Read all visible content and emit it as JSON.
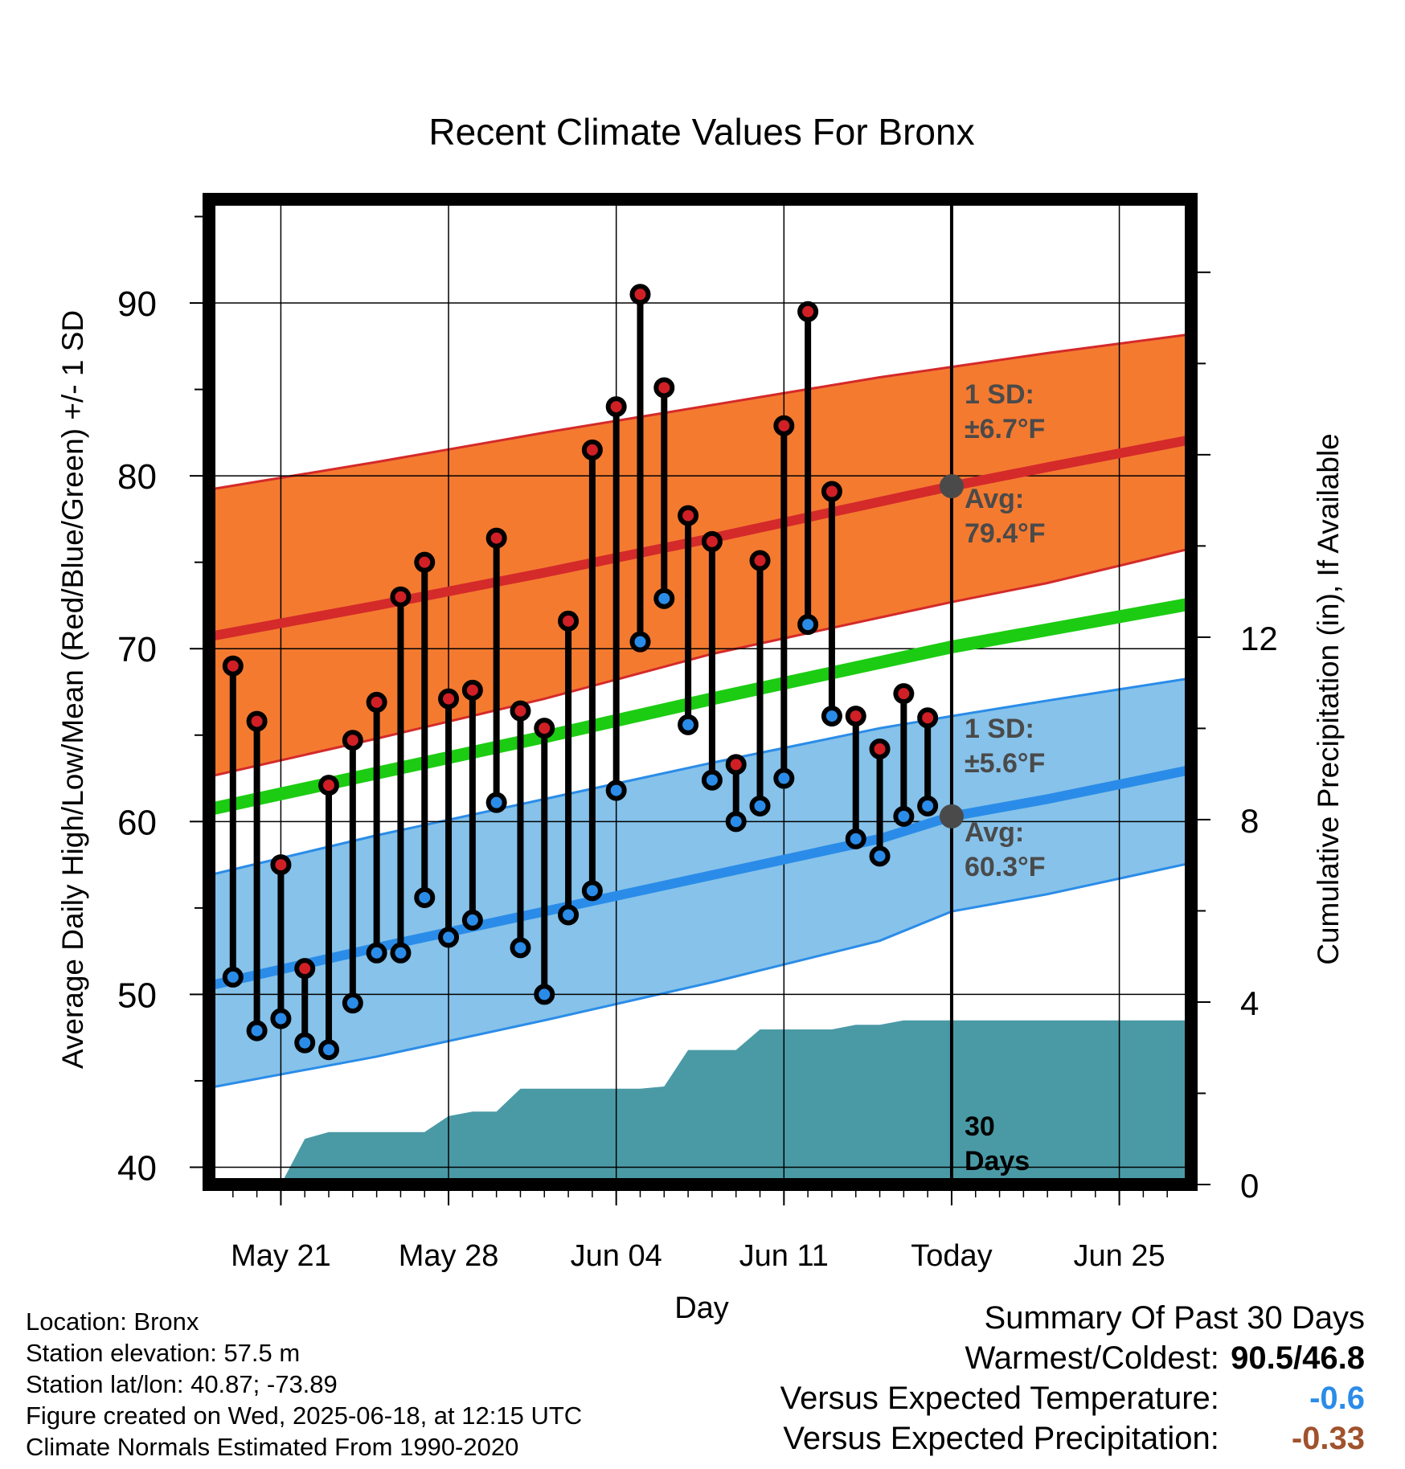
{
  "chart_data": {
    "type": "line",
    "title": "Recent Climate Values For Bronx",
    "xlabel": "Day",
    "ylabel": "Average Daily High/Low/Mean (Red/Blue/Green) +/- 1 SD",
    "y2label": "Cumulative Precipitation (in), If Available",
    "ylim": [
      39,
      96
    ],
    "y2lim": [
      0,
      21.6
    ],
    "xlim": [
      "2025-05-18",
      "2025-06-28"
    ],
    "yticks": [
      40,
      50,
      60,
      70,
      80,
      90
    ],
    "y2ticks": [
      0,
      4,
      8,
      12
    ],
    "xticks": [
      {
        "date": "2025-05-21",
        "label": "May 21"
      },
      {
        "date": "2025-05-28",
        "label": "May 28"
      },
      {
        "date": "2025-06-04",
        "label": "Jun 04"
      },
      {
        "date": "2025-06-11",
        "label": "Jun 11"
      },
      {
        "date": "2025-06-18",
        "label": "Today"
      },
      {
        "date": "2025-06-25",
        "label": "Jun 25"
      }
    ],
    "grid": true,
    "today": "2025-06-18",
    "normals": {
      "dates": [
        "2025-05-18",
        "2025-05-25",
        "2025-06-01",
        "2025-06-08",
        "2025-06-15",
        "2025-06-18",
        "2025-06-22",
        "2025-06-28"
      ],
      "high_mean": [
        70.7,
        72.5,
        74.4,
        76.4,
        78.5,
        79.4,
        80.5,
        82.1
      ],
      "high_upper": [
        79.2,
        80.8,
        82.5,
        84.1,
        85.7,
        86.3,
        87.1,
        88.2
      ],
      "high_lower": [
        62.6,
        64.8,
        67.1,
        69.7,
        71.8,
        72.7,
        73.8,
        75.8
      ],
      "mean_line": [
        60.7,
        62.8,
        64.9,
        67.1,
        69.2,
        70.1,
        71.1,
        72.6
      ],
      "low_mean": [
        50.5,
        52.7,
        54.8,
        56.9,
        59.0,
        60.3,
        61.3,
        63.0
      ],
      "low_upper": [
        56.9,
        59.2,
        61.3,
        63.4,
        65.4,
        66.1,
        67.0,
        68.3
      ],
      "low_lower": [
        44.6,
        46.4,
        48.5,
        50.7,
        53.1,
        54.8,
        55.8,
        57.6
      ]
    },
    "series": [
      {
        "name": "High",
        "color": "#d11f26",
        "dates": [
          "2025-05-19",
          "2025-05-20",
          "2025-05-21",
          "2025-05-22",
          "2025-05-23",
          "2025-05-24",
          "2025-05-25",
          "2025-05-26",
          "2025-05-27",
          "2025-05-28",
          "2025-05-29",
          "2025-05-30",
          "2025-05-31",
          "2025-06-01",
          "2025-06-02",
          "2025-06-03",
          "2025-06-04",
          "2025-06-05",
          "2025-06-06",
          "2025-06-07",
          "2025-06-08",
          "2025-06-09",
          "2025-06-10",
          "2025-06-11",
          "2025-06-12",
          "2025-06-13",
          "2025-06-14",
          "2025-06-15",
          "2025-06-16",
          "2025-06-17"
        ],
        "values": [
          69.0,
          65.8,
          57.5,
          51.5,
          62.1,
          64.7,
          66.9,
          73.0,
          75.0,
          67.1,
          67.6,
          76.4,
          66.4,
          65.4,
          71.6,
          81.5,
          84.0,
          90.5,
          85.1,
          77.7,
          76.2,
          63.3,
          75.1,
          82.9,
          89.5,
          79.1,
          66.1,
          64.2,
          67.4,
          66.0
        ]
      },
      {
        "name": "Low",
        "color": "#2a8ce8",
        "dates": [
          "2025-05-19",
          "2025-05-20",
          "2025-05-21",
          "2025-05-22",
          "2025-05-23",
          "2025-05-24",
          "2025-05-25",
          "2025-05-26",
          "2025-05-27",
          "2025-05-28",
          "2025-05-29",
          "2025-05-30",
          "2025-05-31",
          "2025-06-01",
          "2025-06-02",
          "2025-06-03",
          "2025-06-04",
          "2025-06-05",
          "2025-06-06",
          "2025-06-07",
          "2025-06-08",
          "2025-06-09",
          "2025-06-10",
          "2025-06-11",
          "2025-06-12",
          "2025-06-13",
          "2025-06-14",
          "2025-06-15",
          "2025-06-16",
          "2025-06-17"
        ],
        "values": [
          51.0,
          47.9,
          48.6,
          47.2,
          46.8,
          49.5,
          52.4,
          52.4,
          55.6,
          53.3,
          54.3,
          61.1,
          52.7,
          50.0,
          54.6,
          56.0,
          61.8,
          70.4,
          72.9,
          65.6,
          62.4,
          60.0,
          60.9,
          62.5,
          71.4,
          66.1,
          59.0,
          58.0,
          60.3,
          60.9
        ]
      },
      {
        "name": "Cumulative Precipitation",
        "dates": [
          "2025-05-18",
          "2025-05-21",
          "2025-05-22",
          "2025-05-23",
          "2025-05-24",
          "2025-05-25",
          "2025-05-26",
          "2025-05-27",
          "2025-05-28",
          "2025-05-29",
          "2025-05-30",
          "2025-05-31",
          "2025-06-01",
          "2025-06-02",
          "2025-06-03",
          "2025-06-04",
          "2025-06-05",
          "2025-06-06",
          "2025-06-07",
          "2025-06-08",
          "2025-06-09",
          "2025-06-10",
          "2025-06-11",
          "2025-06-12",
          "2025-06-13",
          "2025-06-14",
          "2025-06-15",
          "2025-06-16",
          "2025-06-17",
          "2025-06-28"
        ],
        "values": [
          0.0,
          0.0,
          1.0,
          1.15,
          1.15,
          1.15,
          1.15,
          1.15,
          1.5,
          1.6,
          1.6,
          2.1,
          2.1,
          2.1,
          2.1,
          2.1,
          2.1,
          2.15,
          2.95,
          2.95,
          2.95,
          3.4,
          3.4,
          3.4,
          3.4,
          3.5,
          3.5,
          3.6,
          3.6,
          3.6
        ]
      }
    ],
    "annotations": [
      {
        "kind": "high-sd",
        "line1": "1 SD:",
        "line2": "±6.7°F"
      },
      {
        "kind": "high-avg",
        "line1": "Avg:",
        "line2": "79.4°F",
        "value": 79.4
      },
      {
        "kind": "low-sd",
        "line1": "1 SD:",
        "line2": "±5.6°F"
      },
      {
        "kind": "low-avg",
        "line1": "Avg:",
        "line2": "60.3°F",
        "value": 60.3
      },
      {
        "kind": "days",
        "line1": "30",
        "line2": "Days"
      }
    ],
    "colors": {
      "high_band": "#f47a30",
      "high_line": "#d42a2a",
      "high_edge": "#d42a2a",
      "mean_line": "#1ccc12",
      "low_band": "#86c2ea",
      "low_line": "#2a8ce8",
      "low_edge": "#2a8ce8",
      "precip": "#4a9aa6",
      "avg_marker": "#4a4a4a",
      "annotation_text": "#4a4a4a"
    }
  },
  "info": {
    "location": "Location: Bronx",
    "elevation": "Station elevation: 57.5 m",
    "latlon": "Station lat/lon: 40.87; -73.89",
    "created": "Figure created on Wed, 2025-06-18, at 12:15 UTC",
    "normals": "Climate Normals Estimated From 1990-2020"
  },
  "summary": {
    "title": "Summary Of Past 30 Days",
    "warmest_label": "Warmest/Coldest:",
    "warmest_value": "90.5/46.8",
    "temp_label": "Versus Expected Temperature:",
    "temp_value": "-0.6",
    "temp_color": "#2a8ce8",
    "precip_label": "Versus Expected Precipitation:",
    "precip_value": "-0.33",
    "precip_color": "#a0522d"
  }
}
